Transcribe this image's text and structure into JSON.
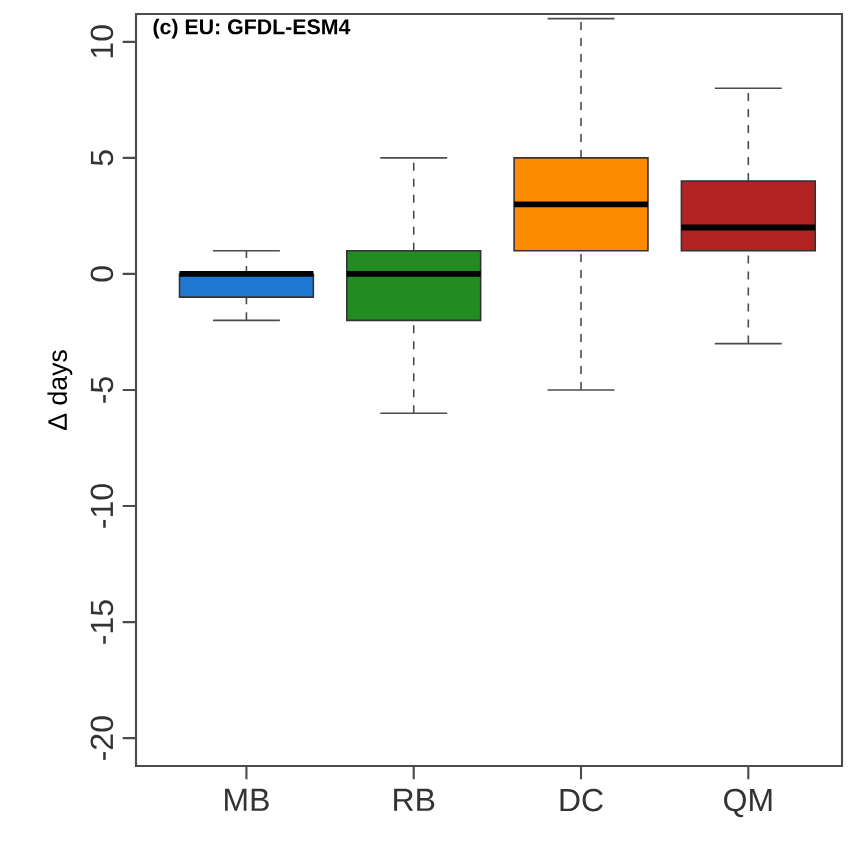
{
  "chart_data": {
    "type": "box",
    "title": "(c) EU: GFDL-ESM4",
    "ylabel": "Δ days",
    "categories": [
      "MB",
      "RB",
      "DC",
      "QM"
    ],
    "colors": [
      "#1e78d2",
      "#228b22",
      "#ff8c00",
      "#b22222"
    ],
    "boxes": [
      {
        "low": -2,
        "q1": -1,
        "median": 0,
        "q3": 0,
        "high": 1
      },
      {
        "low": -6,
        "q1": -2,
        "median": 0,
        "q3": 1,
        "high": 5
      },
      {
        "low": -5,
        "q1": 1,
        "median": 3,
        "q3": 5,
        "high": 11
      },
      {
        "low": -3,
        "q1": 1,
        "median": 2,
        "q3": 4,
        "high": 8
      }
    ],
    "ylim": [
      -21.2,
      11.2
    ],
    "yticks": [
      -20,
      -15,
      -10,
      -5,
      0,
      5,
      10
    ],
    "grid": false
  }
}
